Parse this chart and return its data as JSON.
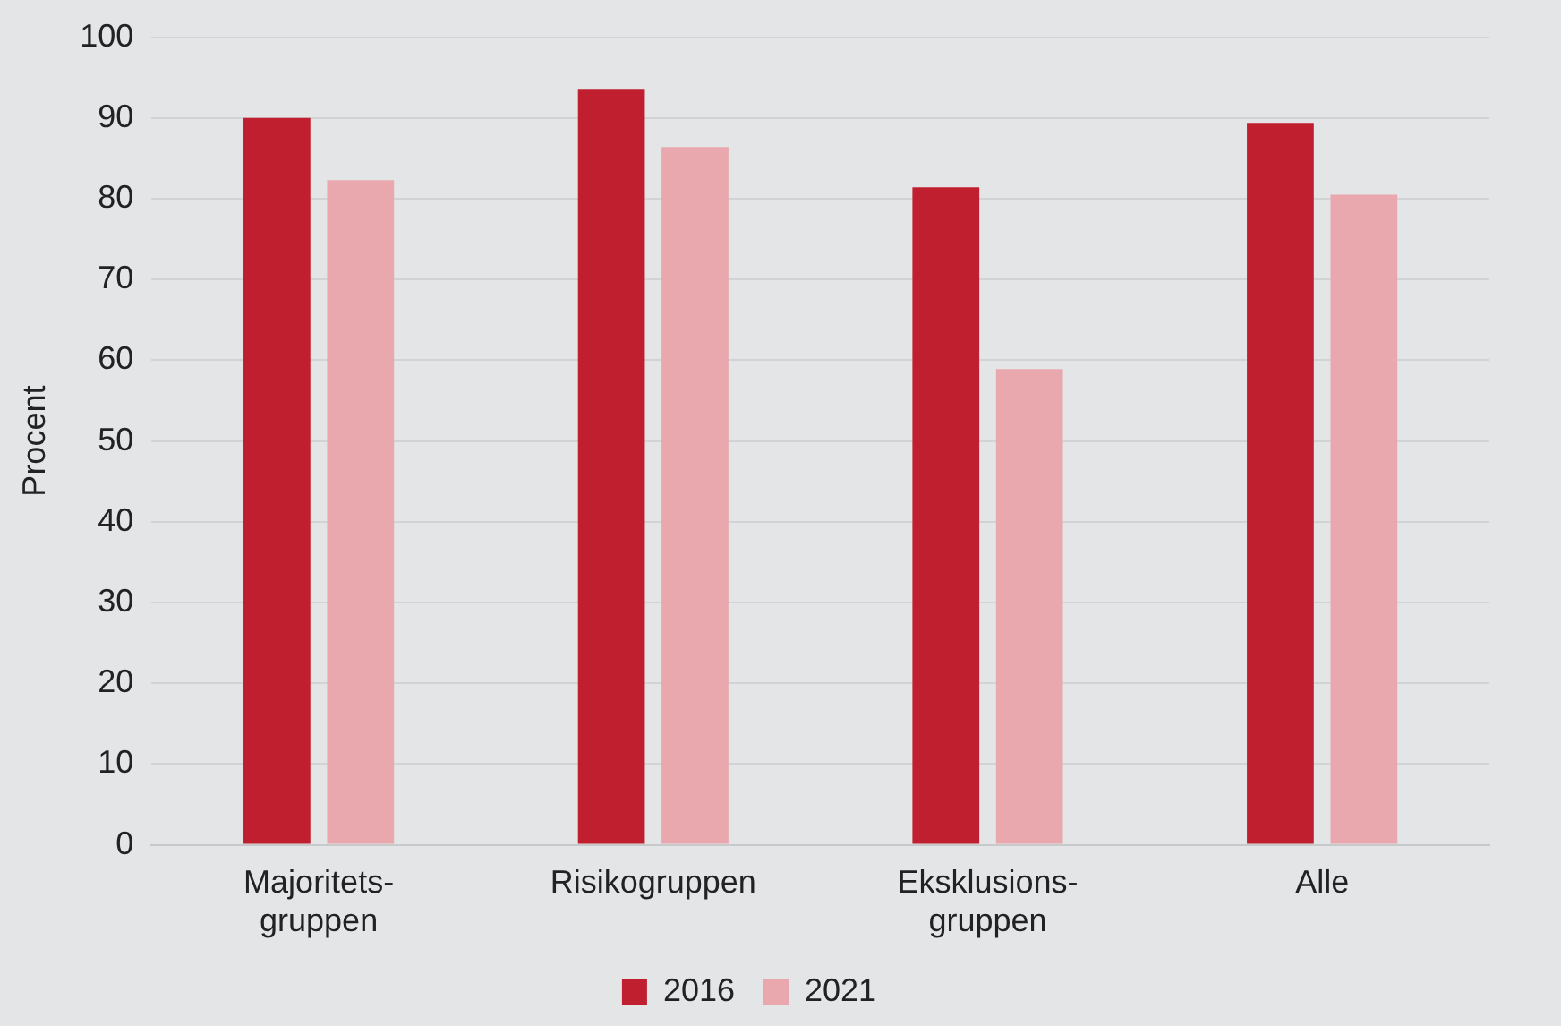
{
  "chart_data": {
    "type": "bar",
    "ylabel": "Procent",
    "categories": [
      "Majoritets-gruppen",
      "Risikogruppen",
      "Eksklusions-gruppen",
      "Alle"
    ],
    "series": [
      {
        "name": "2016",
        "color": "#c01f2f",
        "values": [
          90,
          93.6,
          81.4,
          89.4
        ]
      },
      {
        "name": "2021",
        "color": "#e8a8ae",
        "values": [
          82.3,
          86.4,
          58.9,
          80.5
        ]
      }
    ],
    "ylim": [
      0,
      100
    ],
    "yticks": [
      0,
      10,
      20,
      30,
      40,
      50,
      60,
      70,
      80,
      90,
      100
    ],
    "grid": "y",
    "legend": "bottom"
  }
}
